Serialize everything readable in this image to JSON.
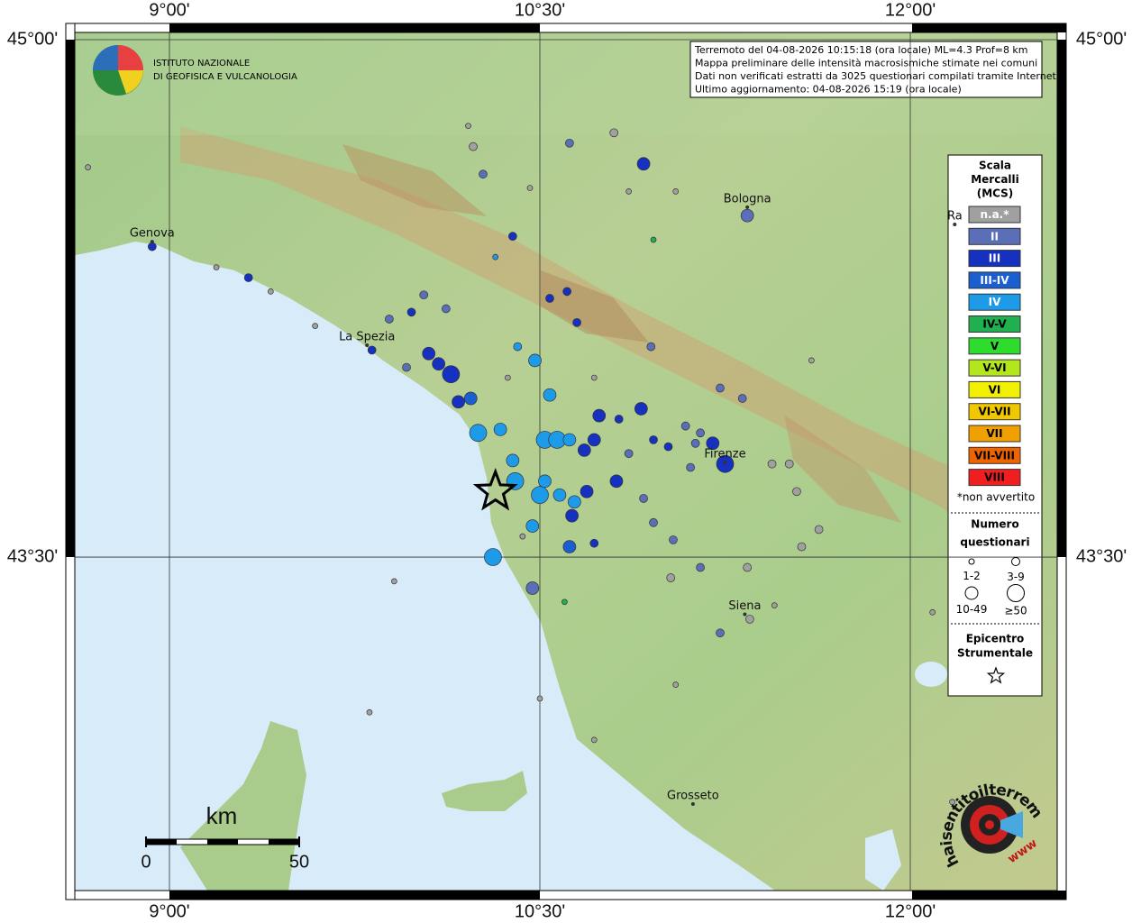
{
  "map": {
    "lon_ticks": [
      {
        "value": 9,
        "label": "9°00'"
      },
      {
        "value": 10.5,
        "label": "10°30'"
      },
      {
        "value": 12,
        "label": "12°00'"
      }
    ],
    "lat_ticks": [
      {
        "value": 45,
        "label": "45°00'"
      },
      {
        "value": 43.5,
        "label": "43°30'"
      }
    ],
    "info": [
      "Terremoto del 04-08-2026 10:15:18 (ora locale) ML=4.3 Prof=8 km",
      "Mappa preliminare delle intensità macrosismiche stimate nei comuni",
      "Dati non verificati estratti da 3025 questionari compilati tramite Internet.",
      "Ultimo aggiornamento: 04-08-2026 15:19 (ora locale)"
    ],
    "logo": [
      "ISTITUTO NAZIONALE",
      "DI GEOFISICA E VULCANOLOGIA"
    ],
    "places": [
      {
        "name": "Genova",
        "lon": 8.93,
        "lat": 44.43
      },
      {
        "name": "La Spezia",
        "lon": 9.8,
        "lat": 44.13
      },
      {
        "name": "Bologna",
        "lon": 11.34,
        "lat": 44.53
      },
      {
        "name": "Ra",
        "lon": 12.18,
        "lat": 44.48
      },
      {
        "name": "Firenze",
        "lon": 11.25,
        "lat": 43.79
      },
      {
        "name": "Siena",
        "lon": 11.33,
        "lat": 43.35
      },
      {
        "name": "Grosseto",
        "lon": 11.12,
        "lat": 42.8
      }
    ],
    "legend": {
      "title": [
        "Scala",
        "Mercalli",
        "(MCS)"
      ],
      "classes": [
        {
          "label": "n.a.*",
          "color": "#a0a0a0"
        },
        {
          "label": "II",
          "color": "#5a6fb8"
        },
        {
          "label": "III",
          "color": "#1630c0"
        },
        {
          "label": "III-IV",
          "color": "#1a5fd0"
        },
        {
          "label": "IV",
          "color": "#1e9be8"
        },
        {
          "label": "IV-V",
          "color": "#20b050"
        },
        {
          "label": "V",
          "color": "#2ddc2d"
        },
        {
          "label": "V-VI",
          "color": "#b4e61e"
        },
        {
          "label": "VI",
          "color": "#f0f000"
        },
        {
          "label": "VI-VII",
          "color": "#f0c800"
        },
        {
          "label": "VII",
          "color": "#f0a000"
        },
        {
          "label": "VII-VIII",
          "color": "#f06400"
        },
        {
          "label": "VIII",
          "color": "#f01e1e"
        }
      ],
      "note": "*non avvertito",
      "size_title": [
        "Numero",
        "questionari"
      ],
      "sizes": [
        "1-2",
        "3-9",
        "10-49",
        "≥50"
      ],
      "epicenter_title": [
        "Epicentro",
        "Strumentale"
      ]
    },
    "epicenter": {
      "lon": 10.32,
      "lat": 43.69
    },
    "scale": {
      "title": "km",
      "ticks": [
        0,
        50
      ]
    },
    "brand": "haisentitoilterremoto.it",
    "brand2": "www",
    "points": [
      [
        10.14,
        44.03,
        2,
        3
      ],
      [
        10.09,
        44.06,
        2,
        2
      ],
      [
        10.05,
        44.09,
        2,
        2
      ],
      [
        10.17,
        43.95,
        2,
        2
      ],
      [
        10.22,
        43.96,
        3,
        2
      ],
      [
        10.25,
        43.86,
        4,
        3
      ],
      [
        10.31,
        43.5,
        4,
        3
      ],
      [
        10.34,
        43.87,
        4,
        2
      ],
      [
        10.39,
        43.78,
        4,
        2
      ],
      [
        10.4,
        43.72,
        4,
        3
      ],
      [
        10.5,
        43.68,
        4,
        3
      ],
      [
        10.52,
        43.84,
        4,
        3
      ],
      [
        10.57,
        43.84,
        4,
        3
      ],
      [
        10.62,
        43.84,
        4,
        2
      ],
      [
        10.54,
        43.97,
        4,
        2
      ],
      [
        10.48,
        44.07,
        4,
        2
      ],
      [
        10.41,
        44.11,
        4,
        1
      ],
      [
        10.47,
        43.59,
        4,
        2
      ],
      [
        10.52,
        43.72,
        4,
        2
      ],
      [
        10.58,
        43.68,
        4,
        2
      ],
      [
        10.64,
        43.66,
        4,
        2
      ],
      [
        10.62,
        43.53,
        3,
        2
      ],
      [
        10.63,
        43.62,
        2,
        2
      ],
      [
        10.68,
        43.81,
        2,
        2
      ],
      [
        10.69,
        43.69,
        2,
        2
      ],
      [
        10.72,
        43.84,
        2,
        2
      ],
      [
        10.74,
        43.91,
        2,
        2
      ],
      [
        10.81,
        43.72,
        2,
        2
      ],
      [
        10.82,
        43.9,
        2,
        1
      ],
      [
        10.91,
        43.93,
        2,
        2
      ],
      [
        10.96,
        43.84,
        2,
        1
      ],
      [
        11.02,
        43.82,
        2,
        1
      ],
      [
        11.13,
        43.83,
        1,
        1
      ],
      [
        11.2,
        43.83,
        2,
        2
      ],
      [
        11.25,
        43.77,
        2,
        3
      ],
      [
        11.15,
        43.86,
        1,
        1
      ],
      [
        11.09,
        43.88,
        1,
        1
      ],
      [
        11.11,
        43.76,
        1,
        1
      ],
      [
        10.86,
        43.8,
        1,
        1
      ],
      [
        10.92,
        43.67,
        1,
        1
      ],
      [
        10.96,
        43.6,
        1,
        1
      ],
      [
        11.04,
        43.55,
        1,
        1
      ],
      [
        11.15,
        43.47,
        1,
        1
      ],
      [
        11.23,
        43.28,
        1,
        1
      ],
      [
        11.35,
        43.32,
        0,
        1
      ],
      [
        10.47,
        43.41,
        1,
        2
      ],
      [
        10.72,
        43.54,
        2,
        1
      ],
      [
        9.98,
        44.21,
        2,
        1
      ],
      [
        10.03,
        44.26,
        1,
        1
      ],
      [
        9.89,
        44.19,
        1,
        1
      ],
      [
        9.82,
        44.1,
        2,
        1
      ],
      [
        9.96,
        44.05,
        1,
        1
      ],
      [
        10.12,
        44.22,
        1,
        1
      ],
      [
        10.27,
        44.61,
        1,
        1
      ],
      [
        10.39,
        44.43,
        2,
        1
      ],
      [
        10.62,
        44.7,
        1,
        1
      ],
      [
        10.92,
        44.64,
        2,
        2
      ],
      [
        10.8,
        44.73,
        0,
        1
      ],
      [
        10.23,
        44.69,
        0,
        1
      ],
      [
        10.54,
        44.25,
        2,
        1
      ],
      [
        10.61,
        44.27,
        2,
        1
      ],
      [
        10.65,
        44.18,
        2,
        1
      ],
      [
        10.95,
        44.11,
        1,
        1
      ],
      [
        11.34,
        44.49,
        1,
        2
      ],
      [
        10.96,
        44.42,
        5,
        0
      ],
      [
        10.6,
        43.37,
        5,
        0
      ],
      [
        10.32,
        44.37,
        4,
        0
      ],
      [
        8.93,
        44.4,
        2,
        1
      ],
      [
        9.32,
        44.31,
        2,
        1
      ],
      [
        11.23,
        43.99,
        1,
        1
      ],
      [
        11.32,
        43.96,
        1,
        1
      ],
      [
        11.44,
        43.77,
        0,
        1
      ],
      [
        11.56,
        43.53,
        0,
        1
      ],
      [
        11.51,
        43.77,
        0,
        1
      ],
      [
        11.63,
        43.58,
        0,
        1
      ],
      [
        11.54,
        43.69,
        0,
        1
      ],
      [
        11.03,
        43.44,
        0,
        1
      ],
      [
        11.34,
        43.47,
        0,
        1
      ],
      [
        11.45,
        43.36,
        0,
        0
      ],
      [
        8.67,
        44.63,
        0,
        0
      ],
      [
        9.19,
        44.34,
        0,
        0
      ],
      [
        9.41,
        44.27,
        0,
        0
      ],
      [
        9.59,
        44.17,
        0,
        0
      ],
      [
        10.5,
        43.09,
        0,
        0
      ],
      [
        10.72,
        42.97,
        0,
        0
      ],
      [
        11.05,
        43.13,
        0,
        0
      ],
      [
        11.6,
        44.07,
        0,
        0
      ],
      [
        10.72,
        44.02,
        0,
        0
      ],
      [
        10.37,
        44.02,
        0,
        0
      ],
      [
        10.21,
        44.75,
        0,
        0
      ],
      [
        10.46,
        44.57,
        0,
        0
      ],
      [
        10.86,
        44.56,
        0,
        0
      ],
      [
        11.05,
        44.56,
        0,
        0
      ],
      [
        9.91,
        43.43,
        0,
        0
      ],
      [
        9.81,
        43.05,
        0,
        0
      ],
      [
        12.17,
        42.79,
        0,
        0
      ],
      [
        12.09,
        43.34,
        0,
        0
      ],
      [
        10.43,
        43.56,
        0,
        0
      ]
    ]
  }
}
